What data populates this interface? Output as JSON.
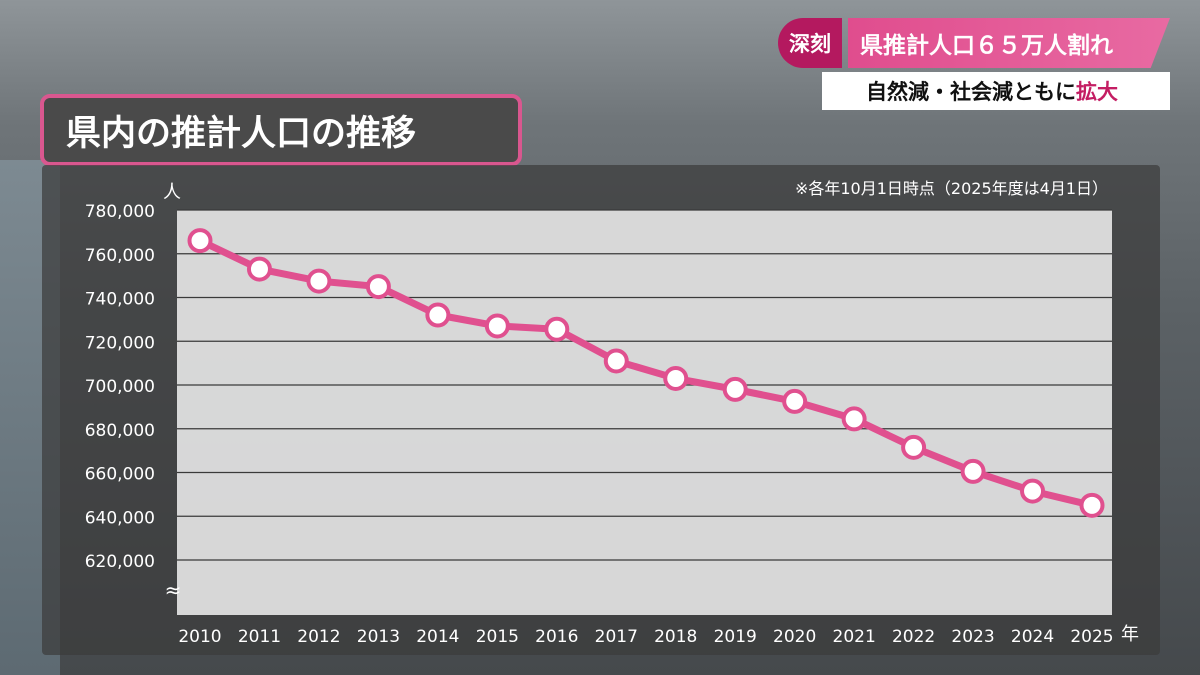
{
  "header": {
    "badge": "深刻",
    "headline": "県推計人口６５万人割れ",
    "subheadline_main": "自然減・社会減ともに",
    "subheadline_accent": "拡大"
  },
  "title": "県内の推計人口の推移",
  "colors": {
    "accent": "#e0508f",
    "plot_bg": "#e3e3e3",
    "marker": "#e0508f"
  },
  "chart_data": {
    "type": "line",
    "title": "県内の推計人口の推移",
    "note": "※各年10月1日時点（2025年度は4月1日）",
    "xlabel": "年",
    "ylabel": "人",
    "categories": [
      "2010",
      "2011",
      "2012",
      "2013",
      "2014",
      "2015",
      "2016",
      "2017",
      "2018",
      "2019",
      "2020",
      "2021",
      "2022",
      "2023",
      "2024",
      "2025"
    ],
    "series": [
      {
        "values": [
          766000,
          753000,
          747500,
          745000,
          732000,
          727000,
          725500,
          711000,
          703000,
          698000,
          692500,
          684500,
          671500,
          660500,
          651500,
          645000
        ]
      }
    ],
    "y_ticks": [
      620000,
      640000,
      660000,
      680000,
      700000,
      720000,
      740000,
      760000,
      780000
    ],
    "y_tick_labels": [
      "620,000",
      "640,000",
      "660,000",
      "680,000",
      "700,000",
      "720,000",
      "740,000",
      "760,000",
      "780,000"
    ],
    "ylim": [
      620000,
      780000
    ],
    "axis_break": "≈",
    "grid": true
  }
}
